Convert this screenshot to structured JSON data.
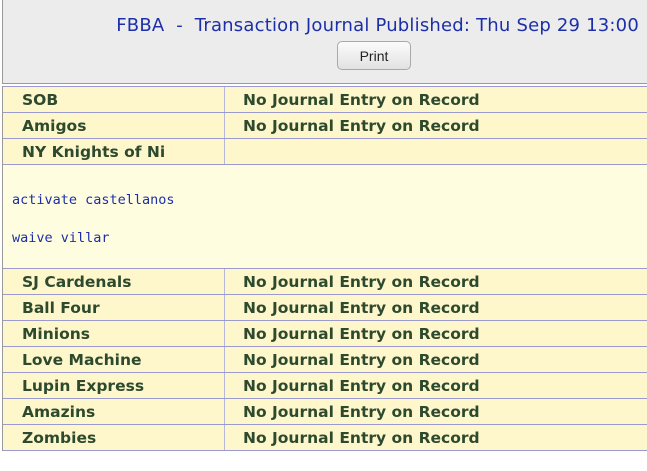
{
  "header": {
    "title": "FBBA  -  Transaction Journal Published: Thu Sep 29 13:00",
    "print_label": "Print"
  },
  "journal": {
    "rows_top": [
      {
        "team": "SOB",
        "status": "No Journal Entry on Record"
      },
      {
        "team": "Amigos",
        "status": "No Journal Entry on Record"
      },
      {
        "team": "NY Knights of Ni",
        "status": ""
      }
    ],
    "entries": [
      "activate castellanos",
      "waive villar"
    ],
    "rows_bottom": [
      {
        "team": "SJ Cardenals",
        "status": "No Journal Entry on Record"
      },
      {
        "team": "Ball Four",
        "status": "No Journal Entry on Record"
      },
      {
        "team": "Minions",
        "status": "No Journal Entry on Record"
      },
      {
        "team": "Love Machine",
        "status": "No Journal Entry on Record"
      },
      {
        "team": "Lupin Express",
        "status": "No Journal Entry on Record"
      },
      {
        "team": "Amazins",
        "status": "No Journal Entry on Record"
      },
      {
        "team": "Zombies",
        "status": "No Journal Entry on Record"
      }
    ]
  }
}
